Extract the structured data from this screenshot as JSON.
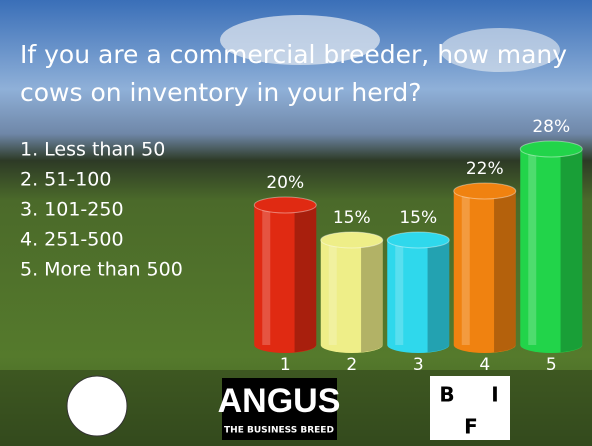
{
  "chart_data": {
    "type": "bar",
    "title": "If you are a commercial breeder, how many cows on inventory in your herd?",
    "options": [
      "1. Less than 50",
      "2. 51-100",
      "3. 101-250",
      "4. 251-500",
      "5. More than 500"
    ],
    "categories": [
      "1",
      "2",
      "3",
      "4",
      "5"
    ],
    "values": [
      20,
      15,
      15,
      22,
      28
    ],
    "value_labels": [
      "20%",
      "15%",
      "15%",
      "22%",
      "28%"
    ],
    "colors": [
      "#e02a12",
      "#eeee88",
      "#2fd8ec",
      "#f08210",
      "#22d44a"
    ],
    "ylim": [
      0,
      30
    ]
  },
  "footer": {
    "logo_text": "ANGUS",
    "logo_subtext": "THE BUSINESS BREED",
    "bif_letters": [
      "B",
      "I",
      "F"
    ]
  }
}
